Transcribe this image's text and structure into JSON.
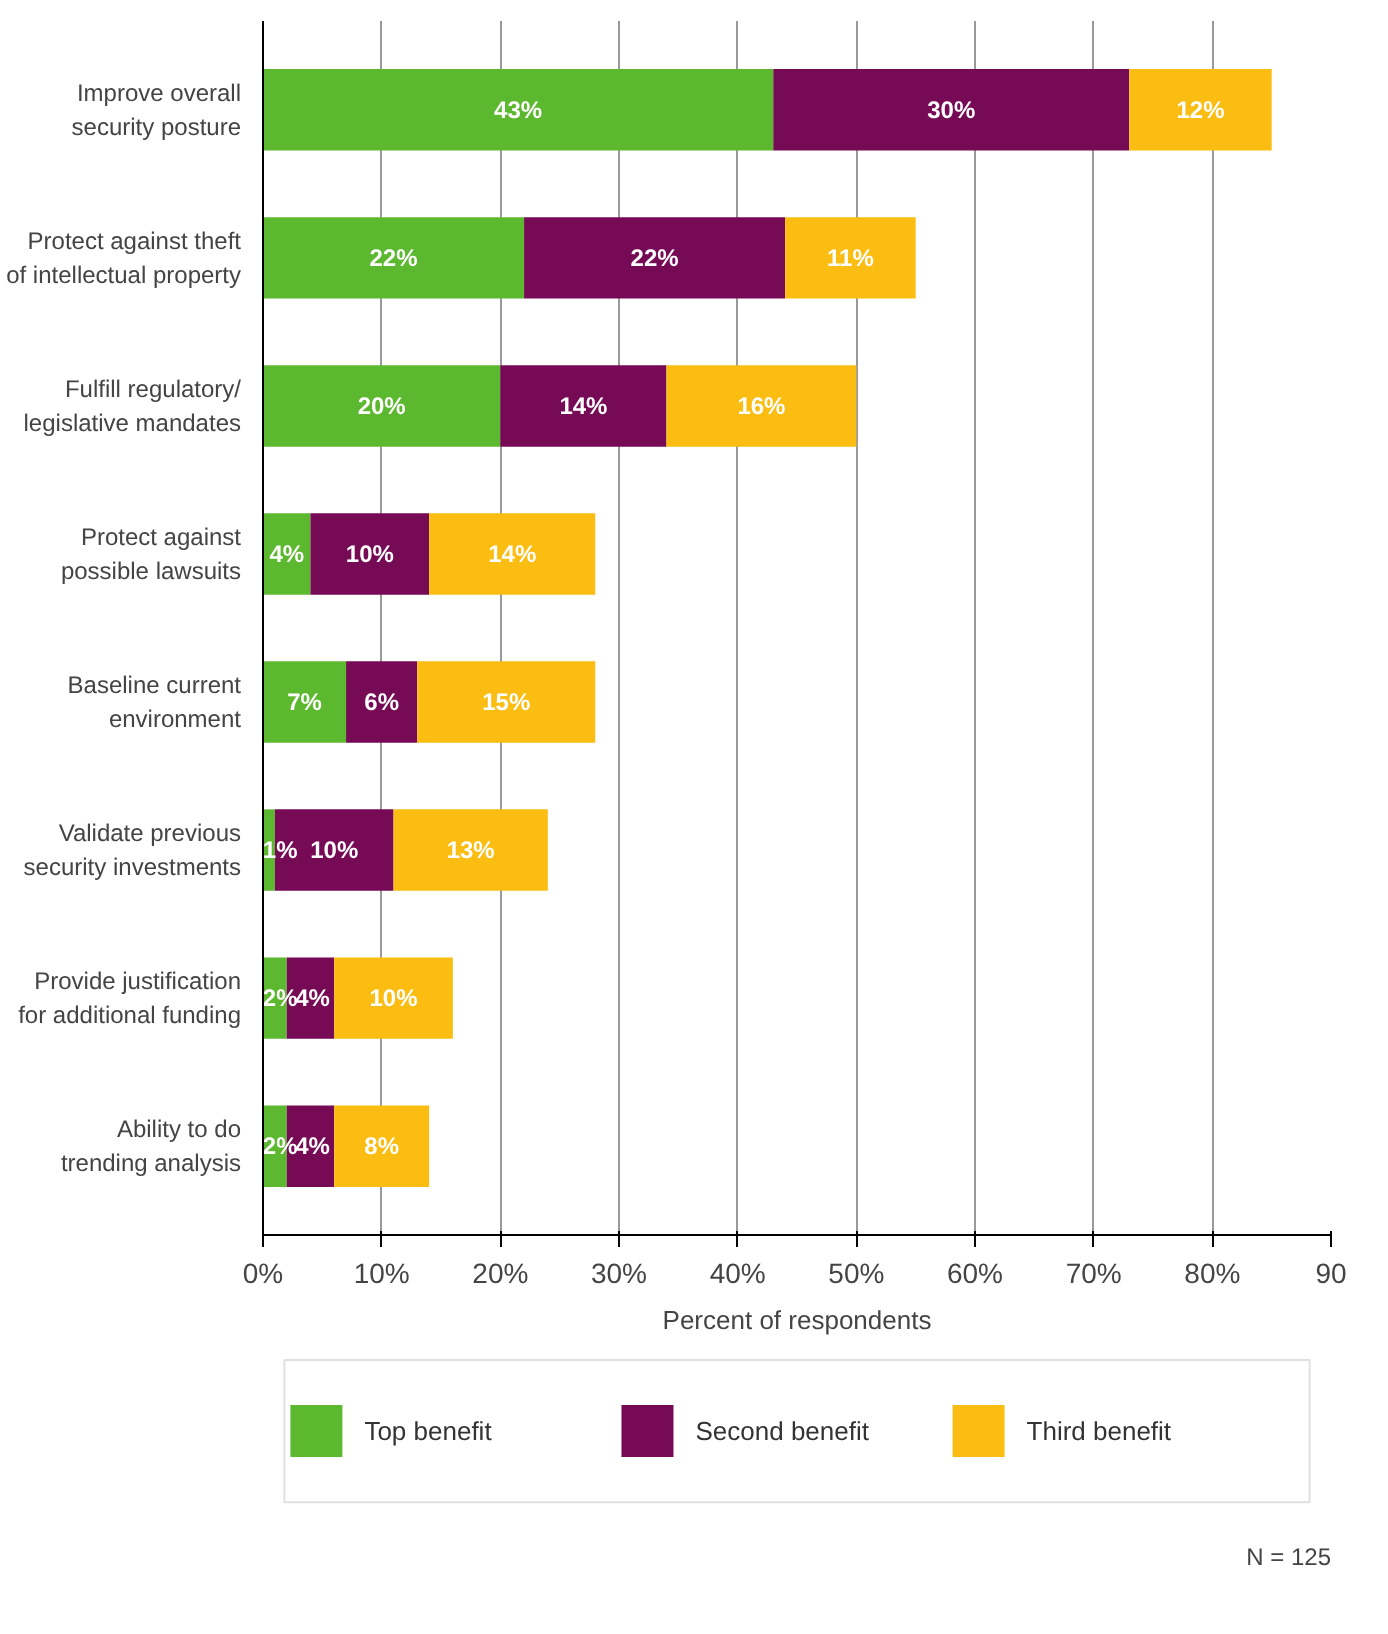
{
  "chart_data": {
    "type": "bar",
    "orientation": "horizontal",
    "stacked": true,
    "categories": [
      "Improve overall\nsecurity posture",
      "Protect against theft\nof intellectual property",
      "Fulfill regulatory/\nlegislative mandates",
      "Protect against\npossible lawsuits",
      "Baseline current\nenvironment",
      "Validate previous\nsecurity investments",
      "Provide justification\nfor additional funding",
      "Ability to do\ntrending analysis"
    ],
    "series": [
      {
        "name": "Top benefit",
        "color": "#5cb82e",
        "values": [
          43,
          22,
          20,
          4,
          7,
          1,
          2,
          2
        ],
        "value_labels": [
          "43%",
          "22%",
          "20%",
          "4%",
          "7%",
          "1%",
          "2%",
          "2%"
        ]
      },
      {
        "name": "Second benefit",
        "color": "#770a55",
        "values": [
          30,
          22,
          14,
          10,
          6,
          10,
          4,
          4
        ],
        "value_labels": [
          "30%",
          "22%",
          "14%",
          "10%",
          "6%",
          "10%",
          "4%",
          "4%"
        ]
      },
      {
        "name": "Third benefit",
        "color": "#fbbd12",
        "values": [
          12,
          11,
          16,
          14,
          15,
          13,
          10,
          8
        ],
        "value_labels": [
          "12%",
          "11%",
          "16%",
          "14%",
          "15%",
          "13%",
          "10%",
          "8%"
        ]
      }
    ],
    "xlim": [
      0,
      90
    ],
    "xticks": [
      {
        "value": 0,
        "label": "0%"
      },
      {
        "value": 10,
        "label": "10%"
      },
      {
        "value": 20,
        "label": "20%"
      },
      {
        "value": 30,
        "label": "30%"
      },
      {
        "value": 40,
        "label": "40%"
      },
      {
        "value": 50,
        "label": "50%"
      },
      {
        "value": 60,
        "label": "60%"
      },
      {
        "value": 70,
        "label": "70%"
      },
      {
        "value": 80,
        "label": "80%"
      },
      {
        "value": 90,
        "label": "90"
      }
    ],
    "xlabel": "Percent of respondents",
    "grid": "x",
    "legend": "bottom",
    "annotations": [
      "N = 125"
    ]
  }
}
